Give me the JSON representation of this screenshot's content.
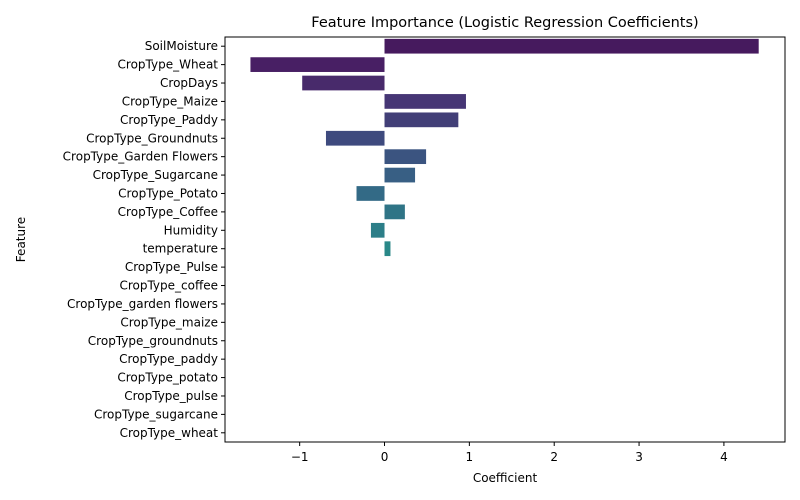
{
  "chart_data": {
    "type": "bar",
    "orientation": "horizontal",
    "title": "Feature Importance (Logistic Regression Coefficients)",
    "xlabel": "Coefficient",
    "ylabel": "Feature",
    "xlim": [
      -1.88,
      4.72
    ],
    "xticks": [
      -1,
      0,
      1,
      2,
      3,
      4
    ],
    "xtick_labels": [
      "−1",
      "0",
      "1",
      "2",
      "3",
      "4"
    ],
    "grid": false,
    "categories": [
      "SoilMoisture",
      "CropType_Wheat",
      "CropDays",
      "CropType_Maize",
      "CropType_Paddy",
      "CropType_Groundnuts",
      "CropType_Garden Flowers",
      "CropType_Sugarcane",
      "CropType_Potato",
      "CropType_Coffee",
      "Humidity",
      "temperature",
      "CropType_Pulse",
      "CropType_coffee",
      "CropType_garden flowers",
      "CropType_maize",
      "CropType_groundnuts",
      "CropType_paddy",
      "CropType_potato",
      "CropType_pulse",
      "CropType_sugarcane",
      "CropType_wheat"
    ],
    "values": [
      4.41,
      -1.58,
      -0.97,
      0.96,
      0.87,
      -0.69,
      0.49,
      0.36,
      -0.33,
      0.24,
      -0.16,
      0.07,
      0,
      0,
      0,
      0,
      0,
      0,
      0,
      0,
      0,
      0
    ],
    "colors": [
      "#461a5e",
      "#481f64",
      "#482a6b",
      "#463675",
      "#423f77",
      "#3e4a7e",
      "#3b5480",
      "#385f84",
      "#336a86",
      "#2f7486",
      "#2c7e88",
      "#2a8888",
      "#299489",
      "#28a088",
      "#27aa86",
      "#2ab383",
      "#33be7f",
      "#41c679",
      "#55cf71",
      "#6cd666",
      "#86dd55",
      "#a2e040"
    ]
  }
}
